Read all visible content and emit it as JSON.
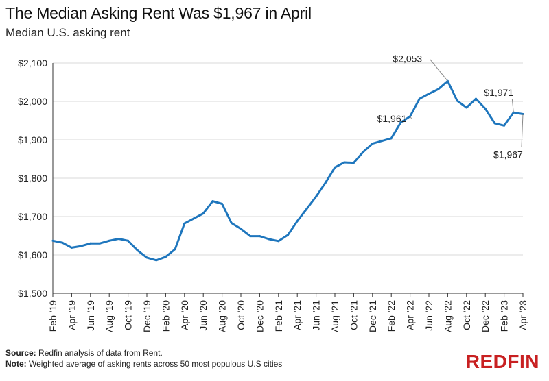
{
  "chart_data": {
    "type": "line",
    "title": "The Median Asking Rent Was $1,967 in April",
    "subtitle": "Median U.S. asking rent",
    "ylim": [
      1500,
      2100
    ],
    "yticks": [
      1500,
      1600,
      1700,
      1800,
      1900,
      2000,
      2100
    ],
    "ytick_labels": [
      "$1,500",
      "$1,600",
      "$1,700",
      "$1,800",
      "$1,900",
      "$2,000",
      "$2,100"
    ],
    "xtick_labels": [
      "Feb '19",
      "Apr '19",
      "Jun '19",
      "Aug '19",
      "Oct '19",
      "Dec '19",
      "Feb '20",
      "Apr '20",
      "Jun '20",
      "Aug '20",
      "Oct '20",
      "Dec '20",
      "Feb '21",
      "Apr '21",
      "Jun '21",
      "Aug '21",
      "Oct '21",
      "Dec '21",
      "Feb '22",
      "Apr '22",
      "Jun '22",
      "Aug '22",
      "Oct '22",
      "Dec '22",
      "Feb '23",
      "Apr '23"
    ],
    "categories": [
      "Feb '19",
      "Mar '19",
      "Apr '19",
      "May '19",
      "Jun '19",
      "Jul '19",
      "Aug '19",
      "Sep '19",
      "Oct '19",
      "Nov '19",
      "Dec '19",
      "Jan '20",
      "Feb '20",
      "Mar '20",
      "Apr '20",
      "May '20",
      "Jun '20",
      "Jul '20",
      "Aug '20",
      "Sep '20",
      "Oct '20",
      "Nov '20",
      "Dec '20",
      "Jan '21",
      "Feb '21",
      "Mar '21",
      "Apr '21",
      "May '21",
      "Jun '21",
      "Jul '21",
      "Aug '21",
      "Sep '21",
      "Oct '21",
      "Nov '21",
      "Dec '21",
      "Jan '22",
      "Feb '22",
      "Mar '22",
      "Apr '22",
      "May '22",
      "Jun '22",
      "Jul '22",
      "Aug '22",
      "Sep '22",
      "Oct '22",
      "Nov '22",
      "Dec '22",
      "Jan '23",
      "Feb '23",
      "Mar '23",
      "Apr '23"
    ],
    "values": [
      1637,
      1632,
      1619,
      1623,
      1630,
      1630,
      1637,
      1642,
      1637,
      1612,
      1593,
      1586,
      1595,
      1615,
      1682,
      1695,
      1708,
      1740,
      1733,
      1683,
      1668,
      1649,
      1649,
      1641,
      1636,
      1652,
      1688,
      1720,
      1752,
      1788,
      1828,
      1841,
      1840,
      1868,
      1890,
      1897,
      1904,
      1945,
      1961,
      2007,
      2020,
      2032,
      2053,
      2002,
      1984,
      2007,
      1981,
      1943,
      1937,
      1971,
      1967
    ],
    "annotations": [
      {
        "label": "$2,053",
        "index": 42
      },
      {
        "label": "$1,961",
        "index": 38
      },
      {
        "label": "$1,971",
        "index": 49
      },
      {
        "label": "$1,967",
        "index": 50
      }
    ],
    "line_color": "#1e76bd",
    "grid": true
  },
  "footer": {
    "source_label": "Source:",
    "source_text": " Redfin analysis of data from Rent.",
    "note_label": "Note:",
    "note_text": " Weighted average of asking rents across 50 most populous U.S cities"
  },
  "logo": {
    "text": "REDFIN",
    "color": "#c82021"
  }
}
